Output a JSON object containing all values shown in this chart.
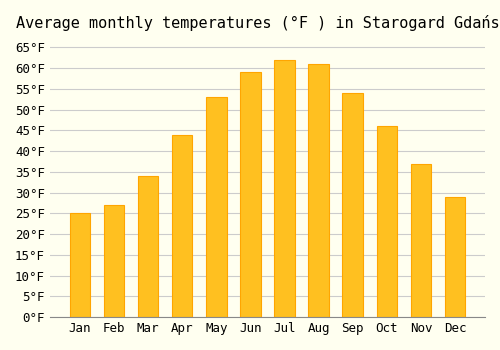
{
  "title": "Average monthly temperatures (°F ) in Starogard Gdański",
  "months": [
    "Jan",
    "Feb",
    "Mar",
    "Apr",
    "May",
    "Jun",
    "Jul",
    "Aug",
    "Sep",
    "Oct",
    "Nov",
    "Dec"
  ],
  "values": [
    25,
    27,
    34,
    44,
    53,
    59,
    62,
    61,
    54,
    46,
    37,
    29
  ],
  "bar_color": "#FFC020",
  "bar_edge_color": "#FFA500",
  "background_color": "#FFFFF0",
  "grid_color": "#CCCCCC",
  "ylim": [
    0,
    67
  ],
  "yticks": [
    0,
    5,
    10,
    15,
    20,
    25,
    30,
    35,
    40,
    45,
    50,
    55,
    60,
    65
  ],
  "title_fontsize": 11,
  "tick_fontsize": 9,
  "font_family": "monospace"
}
